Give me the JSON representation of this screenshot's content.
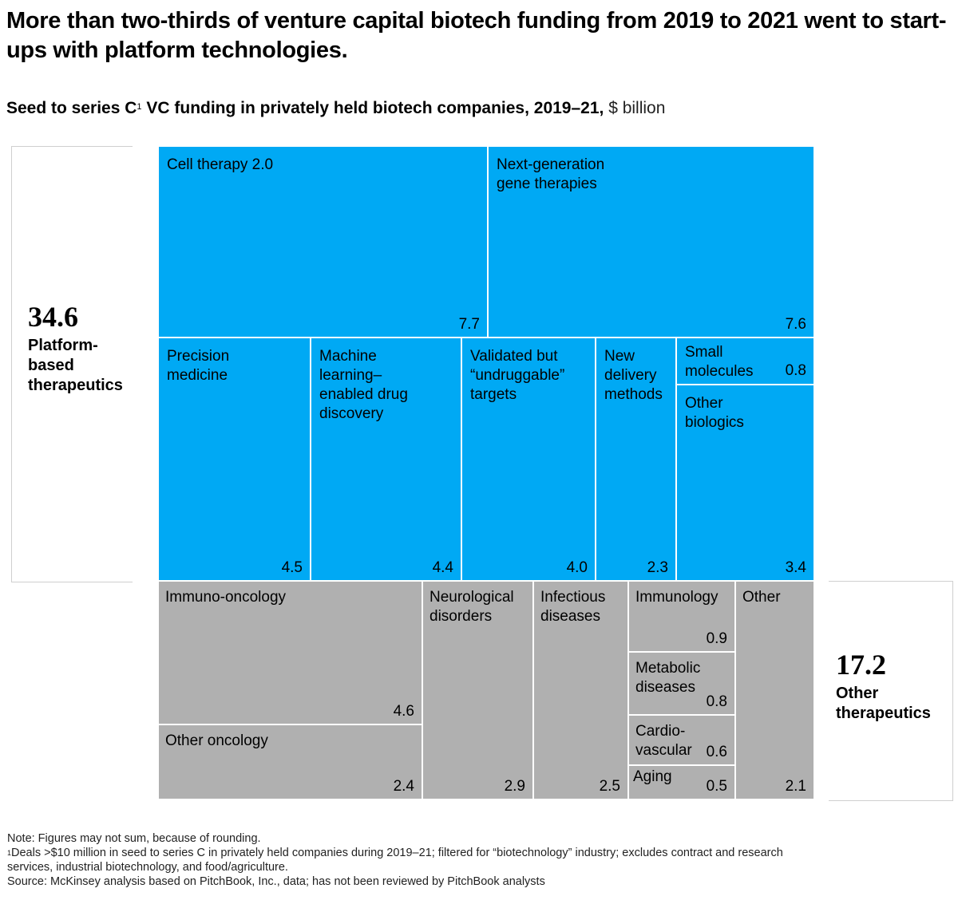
{
  "title": "More than two-thirds of venture capital biotech funding from 2019 to 2021 went to start-ups with platform technologies.",
  "subtitle": {
    "bold_part1": "Seed to series C",
    "footnote_mark": "1",
    "bold_part2": " VC funding in privately held biotech companies, 2019–21,",
    "unit": " $ billion"
  },
  "colors": {
    "platform": "#00a9f4",
    "other": "#b0b0b0"
  },
  "groups": [
    {
      "total": "34.6",
      "label": "Platform-\nbased\ntherapeutics"
    },
    {
      "total": "17.2",
      "label": "Other\ntherapeutics"
    }
  ],
  "chart_data": {
    "type": "treemap",
    "title": "Seed to series C VC funding in privately held biotech companies, 2019–21",
    "unit": "$ billion",
    "groups": [
      {
        "name": "Platform-based therapeutics",
        "total": 34.6,
        "items": [
          {
            "name": "Cell therapy 2.0",
            "value": 7.7
          },
          {
            "name": "Next-generation gene therapies",
            "value": 7.6
          },
          {
            "name": "Precision medicine",
            "value": 4.5
          },
          {
            "name": "Machine learning–enabled drug discovery",
            "value": 4.4
          },
          {
            "name": "Validated but “undruggable” targets",
            "value": 4.0
          },
          {
            "name": "New delivery methods",
            "value": 2.3
          },
          {
            "name": "Small molecules",
            "value": 0.8
          },
          {
            "name": "Other biologics",
            "value": 3.4
          }
        ]
      },
      {
        "name": "Other therapeutics",
        "total": 17.2,
        "items": [
          {
            "name": "Immuno-oncology",
            "value": 4.6
          },
          {
            "name": "Other oncology",
            "value": 2.4
          },
          {
            "name": "Neurological disorders",
            "value": 2.9
          },
          {
            "name": "Infectious diseases",
            "value": 2.5
          },
          {
            "name": "Immunology",
            "value": 0.9
          },
          {
            "name": "Metabolic diseases",
            "value": 0.8
          },
          {
            "name": "Cardiovascular",
            "value": 0.6
          },
          {
            "name": "Aging",
            "value": 0.5
          },
          {
            "name": "Other",
            "value": 2.1
          }
        ]
      }
    ]
  },
  "cells": [
    {
      "label": "Cell therapy 2.0",
      "value": "7.7"
    },
    {
      "label": "Next-generation\ngene therapies",
      "value": "7.6"
    },
    {
      "label": "Precision\nmedicine",
      "value": "4.5"
    },
    {
      "label": "Machine\nlearning–\nenabled drug\ndiscovery",
      "value": "4.4"
    },
    {
      "label": " Validated but\n“undruggable”\n targets",
      "value": "4.0"
    },
    {
      "label": "New\ndelivery\nmethods",
      "value": "2.3"
    },
    {
      "label": "Small\nmolecules",
      "value": "0.8"
    },
    {
      "label": "Other\nbiologics",
      "value": "3.4"
    },
    {
      "label": "Immuno-oncology",
      "value": "4.6"
    },
    {
      "label": "Other oncology",
      "value": "2.4"
    },
    {
      "label": "Neurological\ndisorders",
      "value": "2.9"
    },
    {
      "label": "Infectious\ndiseases",
      "value": "2.5"
    },
    {
      "label": "Immunology",
      "value": "0.9"
    },
    {
      "label": "Metabolic\ndiseases",
      "value": "0.8"
    },
    {
      "label": "Cardio-\nvascular",
      "value": "0.6"
    },
    {
      "label": "Aging",
      "value": "0.5"
    },
    {
      "label": "Other",
      "value": "2.1"
    }
  ],
  "footnotes": {
    "note": "Note: Figures may not sum, because of rounding.",
    "mark": "1",
    "deals": "Deals >$10 million in seed to series C in privately held companies during 2019–21; filtered for “biotechnology” industry; excludes contract and research\n services, industrial biotechnology, and food/agriculture.",
    "source": "Source: McKinsey analysis based on PitchBook, Inc., data; has not been reviewed by PitchBook analysts"
  }
}
